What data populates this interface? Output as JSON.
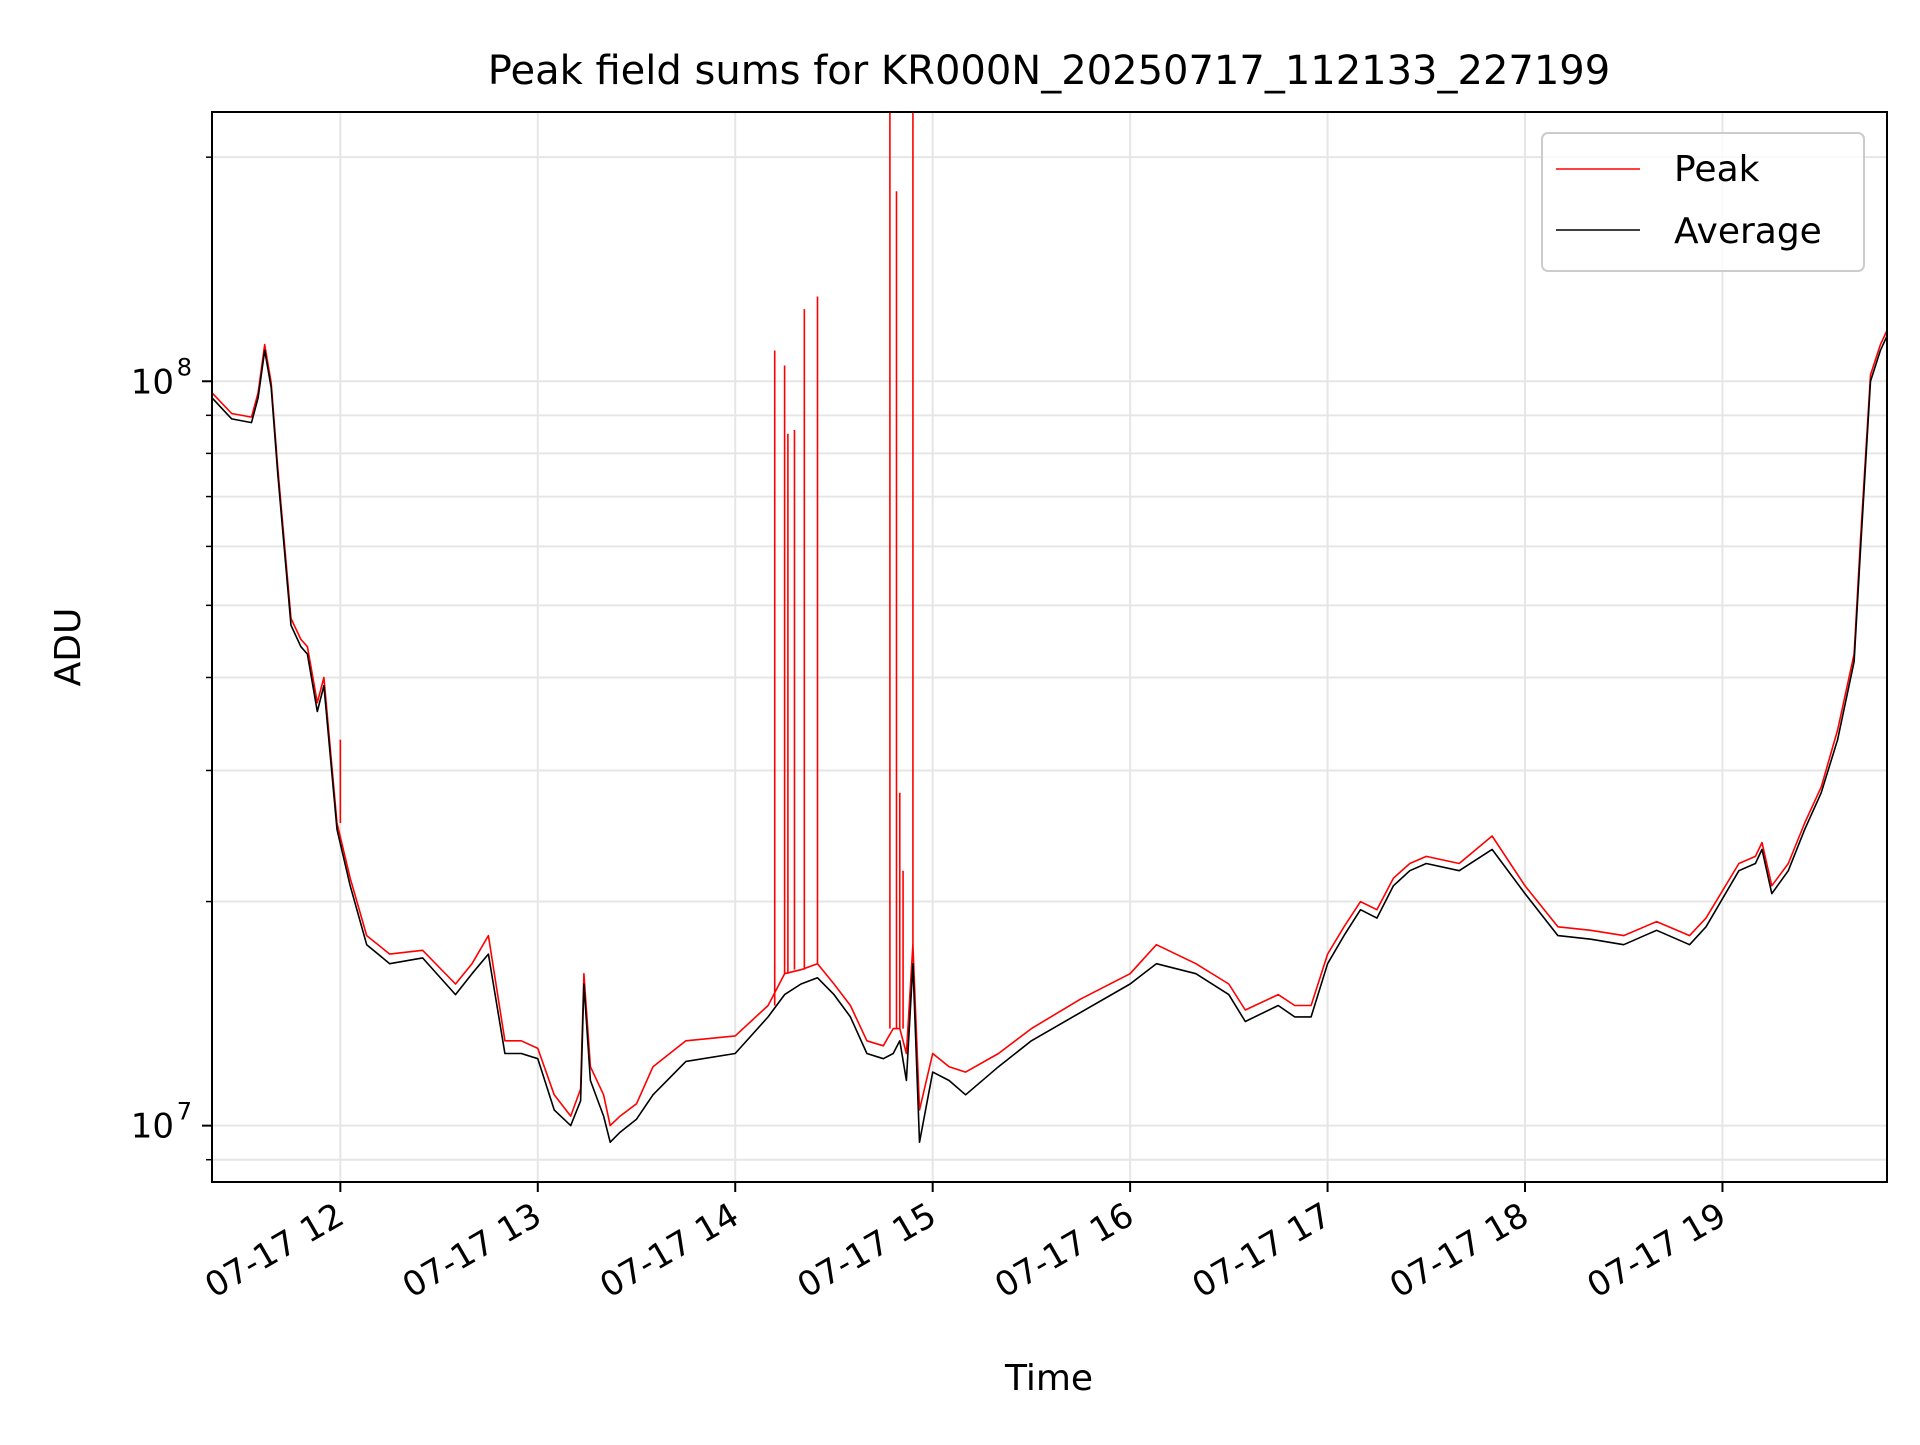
{
  "chart_data": {
    "type": "line",
    "title": "Peak field sums for KR000N_20250717_112133_227199",
    "xlabel": "Time",
    "ylabel": "ADU",
    "y_scale": "log",
    "ylim": [
      8400000,
      230000000
    ],
    "xlim": [
      "2025-07-17 11:21",
      "2025-07-17 19:50"
    ],
    "x_tick_labels": [
      "07-17 12",
      "07-17 13",
      "07-17 14",
      "07-17 15",
      "07-17 16",
      "07-17 17",
      "07-17 18",
      "07-17 19"
    ],
    "x_ticks": [
      "2025-07-17 12:00",
      "2025-07-17 13:00",
      "2025-07-17 14:00",
      "2025-07-17 15:00",
      "2025-07-17 16:00",
      "2025-07-17 17:00",
      "2025-07-17 18:00",
      "2025-07-17 19:00"
    ],
    "y_major_ticks": [
      10000000,
      100000000
    ],
    "y_tick_labels": [
      {
        "base": "10",
        "exp": "7"
      },
      {
        "base": "10",
        "exp": "8"
      }
    ],
    "y_minor_ticks": [
      9000000,
      20000000,
      30000000,
      40000000,
      50000000,
      60000000,
      70000000,
      80000000,
      90000000,
      200000000
    ],
    "grid": true,
    "legend_position": "top-right",
    "series": [
      {
        "name": "Average",
        "color": "#000000",
        "x": [
          "2025-07-17 11:21",
          "2025-07-17 11:27",
          "2025-07-17 11:33",
          "2025-07-17 11:35",
          "2025-07-17 11:37",
          "2025-07-17 11:39",
          "2025-07-17 11:41",
          "2025-07-17 11:45",
          "2025-07-17 11:48",
          "2025-07-17 11:50",
          "2025-07-17 11:53",
          "2025-07-17 11:55",
          "2025-07-17 11:59",
          "2025-07-17 12:03",
          "2025-07-17 12:08",
          "2025-07-17 12:15",
          "2025-07-17 12:25",
          "2025-07-17 12:35",
          "2025-07-17 12:40",
          "2025-07-17 12:45",
          "2025-07-17 12:50",
          "2025-07-17 12:55",
          "2025-07-17 13:00",
          "2025-07-17 13:05",
          "2025-07-17 13:10",
          "2025-07-17 13:13",
          "2025-07-17 13:14",
          "2025-07-17 13:16",
          "2025-07-17 13:20",
          "2025-07-17 13:22",
          "2025-07-17 13:25",
          "2025-07-17 13:30",
          "2025-07-17 13:35",
          "2025-07-17 13:45",
          "2025-07-17 14:00",
          "2025-07-17 14:10",
          "2025-07-17 14:15",
          "2025-07-17 14:20",
          "2025-07-17 14:25",
          "2025-07-17 14:30",
          "2025-07-17 14:35",
          "2025-07-17 14:40",
          "2025-07-17 14:45",
          "2025-07-17 14:48",
          "2025-07-17 14:50",
          "2025-07-17 14:52",
          "2025-07-17 14:54",
          "2025-07-17 14:56",
          "2025-07-17 15:00",
          "2025-07-17 15:05",
          "2025-07-17 15:10",
          "2025-07-17 15:20",
          "2025-07-17 15:30",
          "2025-07-17 15:45",
          "2025-07-17 16:00",
          "2025-07-17 16:08",
          "2025-07-17 16:20",
          "2025-07-17 16:30",
          "2025-07-17 16:35",
          "2025-07-17 16:45",
          "2025-07-17 16:50",
          "2025-07-17 16:55",
          "2025-07-17 17:00",
          "2025-07-17 17:05",
          "2025-07-17 17:10",
          "2025-07-17 17:15",
          "2025-07-17 17:20",
          "2025-07-17 17:25",
          "2025-07-17 17:30",
          "2025-07-17 17:40",
          "2025-07-17 17:50",
          "2025-07-17 18:00",
          "2025-07-17 18:10",
          "2025-07-17 18:20",
          "2025-07-17 18:30",
          "2025-07-17 18:40",
          "2025-07-17 18:50",
          "2025-07-17 18:55",
          "2025-07-17 19:05",
          "2025-07-17 19:10",
          "2025-07-17 19:12",
          "2025-07-17 19:15",
          "2025-07-17 19:20",
          "2025-07-17 19:25",
          "2025-07-17 19:30",
          "2025-07-17 19:35",
          "2025-07-17 19:40",
          "2025-07-17 19:42",
          "2025-07-17 19:45",
          "2025-07-17 19:48",
          "2025-07-17 19:50"
        ],
        "values": [
          95000000,
          89000000,
          88000000,
          95000000,
          110000000,
          98000000,
          75000000,
          47000000,
          44000000,
          43000000,
          36000000,
          39000000,
          25000000,
          21000000,
          17500000,
          16500000,
          16800000,
          15000000,
          16000000,
          17000000,
          12500000,
          12500000,
          12300000,
          10500000,
          10000000,
          10800000,
          15500000,
          11500000,
          10300000,
          9500000,
          9800000,
          10200000,
          11000000,
          12200000,
          12500000,
          14000000,
          15000000,
          15500000,
          15800000,
          15000000,
          14000000,
          12500000,
          12300000,
          12500000,
          13000000,
          11500000,
          16500000,
          9500000,
          11800000,
          11500000,
          11000000,
          12000000,
          13000000,
          14200000,
          15500000,
          16500000,
          16000000,
          15000000,
          13800000,
          14500000,
          14000000,
          14000000,
          16500000,
          18000000,
          19500000,
          19000000,
          21000000,
          22000000,
          22500000,
          22000000,
          23500000,
          20500000,
          18000000,
          17800000,
          17500000,
          18300000,
          17500000,
          18500000,
          22000000,
          22500000,
          23500000,
          20500000,
          22000000,
          25000000,
          28000000,
          33000000,
          42000000,
          60000000,
          100000000,
          110000000,
          115000000
        ]
      },
      {
        "name": "Peak",
        "color": "#ff0000",
        "x": [
          "2025-07-17 11:21",
          "2025-07-17 11:27",
          "2025-07-17 11:33",
          "2025-07-17 11:35",
          "2025-07-17 11:37",
          "2025-07-17 11:39",
          "2025-07-17 11:41",
          "2025-07-17 11:45",
          "2025-07-17 11:48",
          "2025-07-17 11:50",
          "2025-07-17 11:53",
          "2025-07-17 11:55",
          "2025-07-17 11:59",
          "2025-07-17 12:03",
          "2025-07-17 12:08",
          "2025-07-17 12:15",
          "2025-07-17 12:25",
          "2025-07-17 12:35",
          "2025-07-17 12:40",
          "2025-07-17 12:45",
          "2025-07-17 12:50",
          "2025-07-17 12:55",
          "2025-07-17 13:00",
          "2025-07-17 13:05",
          "2025-07-17 13:10",
          "2025-07-17 13:13",
          "2025-07-17 13:14",
          "2025-07-17 13:16",
          "2025-07-17 13:20",
          "2025-07-17 13:22",
          "2025-07-17 13:25",
          "2025-07-17 13:30",
          "2025-07-17 13:35",
          "2025-07-17 13:45",
          "2025-07-17 14:00",
          "2025-07-17 14:10",
          "2025-07-17 14:15",
          "2025-07-17 14:20",
          "2025-07-17 14:25",
          "2025-07-17 14:30",
          "2025-07-17 14:35",
          "2025-07-17 14:40",
          "2025-07-17 14:45",
          "2025-07-17 14:48",
          "2025-07-17 14:50",
          "2025-07-17 14:52",
          "2025-07-17 14:54",
          "2025-07-17 14:56",
          "2025-07-17 15:00",
          "2025-07-17 15:05",
          "2025-07-17 15:10",
          "2025-07-17 15:20",
          "2025-07-17 15:30",
          "2025-07-17 15:45",
          "2025-07-17 16:00",
          "2025-07-17 16:08",
          "2025-07-17 16:20",
          "2025-07-17 16:30",
          "2025-07-17 16:35",
          "2025-07-17 16:45",
          "2025-07-17 16:50",
          "2025-07-17 16:55",
          "2025-07-17 17:00",
          "2025-07-17 17:05",
          "2025-07-17 17:10",
          "2025-07-17 17:15",
          "2025-07-17 17:20",
          "2025-07-17 17:25",
          "2025-07-17 17:30",
          "2025-07-17 17:40",
          "2025-07-17 17:50",
          "2025-07-17 18:00",
          "2025-07-17 18:10",
          "2025-07-17 18:20",
          "2025-07-17 18:30",
          "2025-07-17 18:40",
          "2025-07-17 18:50",
          "2025-07-17 18:55",
          "2025-07-17 19:05",
          "2025-07-17 19:10",
          "2025-07-17 19:12",
          "2025-07-17 19:15",
          "2025-07-17 19:20",
          "2025-07-17 19:25",
          "2025-07-17 19:30",
          "2025-07-17 19:35",
          "2025-07-17 19:40",
          "2025-07-17 19:42",
          "2025-07-17 19:45",
          "2025-07-17 19:48",
          "2025-07-17 19:50"
        ],
        "values": [
          96500000,
          90500000,
          89500000,
          96500000,
          112000000,
          99500000,
          76500000,
          48000000,
          45000000,
          44000000,
          37000000,
          40000000,
          25500000,
          21500000,
          18000000,
          17000000,
          17200000,
          15500000,
          16500000,
          18000000,
          13000000,
          13000000,
          12700000,
          11000000,
          10300000,
          11200000,
          16000000,
          12000000,
          11000000,
          10000000,
          10300000,
          10700000,
          12000000,
          13000000,
          13200000,
          14500000,
          16000000,
          16200000,
          16500000,
          15500000,
          14500000,
          13000000,
          12800000,
          13500000,
          13500000,
          12500000,
          17500000,
          10500000,
          12500000,
          12000000,
          11800000,
          12500000,
          13500000,
          14800000,
          16000000,
          17500000,
          16500000,
          15500000,
          14300000,
          15000000,
          14500000,
          14500000,
          17000000,
          18500000,
          20000000,
          19500000,
          21500000,
          22500000,
          23000000,
          22500000,
          24500000,
          21000000,
          18500000,
          18300000,
          18000000,
          18800000,
          18000000,
          19000000,
          22500000,
          23000000,
          24000000,
          21000000,
          22500000,
          25500000,
          28500000,
          34000000,
          43000000,
          62000000,
          102000000,
          112000000,
          117000000
        ],
        "spikes": [
          {
            "x": "2025-07-17 12:00",
            "value": 33000000
          },
          {
            "x": "2025-07-17 14:12",
            "value": 110000000
          },
          {
            "x": "2025-07-17 14:15",
            "value": 105000000
          },
          {
            "x": "2025-07-17 14:16",
            "value": 85000000
          },
          {
            "x": "2025-07-17 14:18",
            "value": 86000000
          },
          {
            "x": "2025-07-17 14:21",
            "value": 125000000
          },
          {
            "x": "2025-07-17 14:25",
            "value": 130000000
          },
          {
            "x": "2025-07-17 14:47",
            "value": 230000000
          },
          {
            "x": "2025-07-17 14:49",
            "value": 180000000
          },
          {
            "x": "2025-07-17 14:50",
            "value": 28000000
          },
          {
            "x": "2025-07-17 14:51",
            "value": 22000000
          },
          {
            "x": "2025-07-17 14:54",
            "value": 230000000
          }
        ]
      }
    ]
  }
}
